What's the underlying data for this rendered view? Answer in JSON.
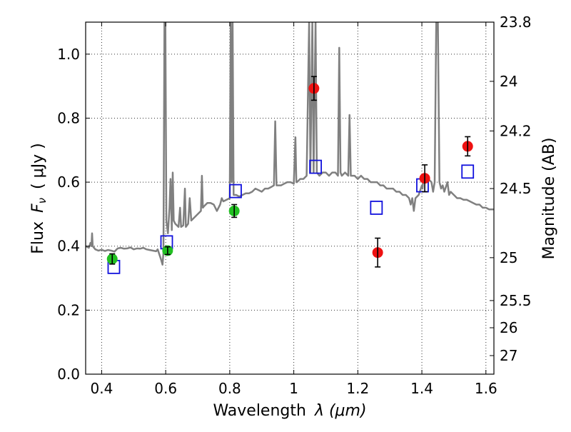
{
  "chart_data": {
    "type": "scatter",
    "xlabel_text": "Wavelength",
    "xlabel_math": "λ (μm)",
    "ylabel_text": "Flux",
    "ylabel_math": "F",
    "ylabel_sub": "ν",
    "ylabel_unit": "( μJy )",
    "y2label": "Magnitude (AB)",
    "xlim": [
      0.35,
      1.625
    ],
    "ylim": [
      0.0,
      1.1
    ],
    "xticks": [
      {
        "value": 0.4,
        "label": "0.4"
      },
      {
        "value": 0.6,
        "label": "0.6"
      },
      {
        "value": 0.8,
        "label": "0.8"
      },
      {
        "value": 1.0,
        "label": "1"
      },
      {
        "value": 1.2,
        "label": "1.2"
      },
      {
        "value": 1.4,
        "label": "1.4"
      },
      {
        "value": 1.6,
        "label": "1.6"
      }
    ],
    "yticks": [
      {
        "value": 0.0,
        "label": "0.0"
      },
      {
        "value": 0.2,
        "label": "0.2"
      },
      {
        "value": 0.4,
        "label": "0.4"
      },
      {
        "value": 0.6,
        "label": "0.6"
      },
      {
        "value": 0.8,
        "label": "0.8"
      },
      {
        "value": 1.0,
        "label": "1.0"
      }
    ],
    "y2ticks": [
      {
        "flux": 1.1,
        "label": "23.8"
      },
      {
        "flux": 0.915,
        "label": "24"
      },
      {
        "flux": 0.76,
        "label": "24.2"
      },
      {
        "flux": 0.58,
        "label": "24.5"
      },
      {
        "flux": 0.364,
        "label": "25"
      },
      {
        "flux": 0.23,
        "label": "25.5"
      },
      {
        "flux": 0.145,
        "label": "26"
      },
      {
        "flux": 0.058,
        "label": "27"
      }
    ],
    "grid": true,
    "series": [
      {
        "kind": "spectrum",
        "color": "#808080",
        "points": [
          [
            0.35,
            0.4
          ],
          [
            0.36,
            0.395
          ],
          [
            0.365,
            0.41
          ],
          [
            0.368,
            0.4
          ],
          [
            0.37,
            0.44
          ],
          [
            0.372,
            0.4
          ],
          [
            0.38,
            0.39
          ],
          [
            0.39,
            0.386
          ],
          [
            0.4,
            0.389
          ],
          [
            0.41,
            0.385
          ],
          [
            0.42,
            0.388
          ],
          [
            0.43,
            0.386
          ],
          [
            0.44,
            0.383
          ],
          [
            0.45,
            0.393
          ],
          [
            0.46,
            0.395
          ],
          [
            0.47,
            0.392
          ],
          [
            0.48,
            0.393
          ],
          [
            0.49,
            0.396
          ],
          [
            0.5,
            0.39
          ],
          [
            0.51,
            0.393
          ],
          [
            0.52,
            0.392
          ],
          [
            0.53,
            0.395
          ],
          [
            0.54,
            0.39
          ],
          [
            0.55,
            0.388
          ],
          [
            0.56,
            0.386
          ],
          [
            0.57,
            0.384
          ],
          [
            0.575,
            0.39
          ],
          [
            0.585,
            0.36
          ],
          [
            0.59,
            0.342
          ],
          [
            0.593,
            0.38
          ],
          [
            0.596,
            1.1
          ],
          [
            0.599,
            1.1
          ],
          [
            0.602,
            0.48
          ],
          [
            0.607,
            0.44
          ],
          [
            0.612,
            0.52
          ],
          [
            0.615,
            0.61
          ],
          [
            0.619,
            0.45
          ],
          [
            0.622,
            0.63
          ],
          [
            0.625,
            0.48
          ],
          [
            0.63,
            0.47
          ],
          [
            0.64,
            0.46
          ],
          [
            0.645,
            0.52
          ],
          [
            0.648,
            0.46
          ],
          [
            0.655,
            0.465
          ],
          [
            0.66,
            0.58
          ],
          [
            0.663,
            0.46
          ],
          [
            0.67,
            0.47
          ],
          [
            0.675,
            0.55
          ],
          [
            0.68,
            0.48
          ],
          [
            0.69,
            0.49
          ],
          [
            0.7,
            0.5
          ],
          [
            0.71,
            0.51
          ],
          [
            0.713,
            0.62
          ],
          [
            0.716,
            0.52
          ],
          [
            0.72,
            0.525
          ],
          [
            0.73,
            0.535
          ],
          [
            0.74,
            0.535
          ],
          [
            0.75,
            0.53
          ],
          [
            0.76,
            0.51
          ],
          [
            0.77,
            0.53
          ],
          [
            0.775,
            0.55
          ],
          [
            0.78,
            0.54
          ],
          [
            0.79,
            0.545
          ],
          [
            0.8,
            0.55
          ],
          [
            0.803,
            1.1
          ],
          [
            0.806,
            0.6
          ],
          [
            0.809,
            1.1
          ],
          [
            0.812,
            0.56
          ],
          [
            0.82,
            0.56
          ],
          [
            0.83,
            0.555
          ],
          [
            0.84,
            0.56
          ],
          [
            0.85,
            0.565
          ],
          [
            0.86,
            0.565
          ],
          [
            0.87,
            0.57
          ],
          [
            0.88,
            0.58
          ],
          [
            0.89,
            0.575
          ],
          [
            0.9,
            0.57
          ],
          [
            0.91,
            0.58
          ],
          [
            0.92,
            0.58
          ],
          [
            0.93,
            0.585
          ],
          [
            0.938,
            0.59
          ],
          [
            0.942,
            0.79
          ],
          [
            0.946,
            0.59
          ],
          [
            0.95,
            0.59
          ],
          [
            0.96,
            0.59
          ],
          [
            0.97,
            0.595
          ],
          [
            0.98,
            0.6
          ],
          [
            0.99,
            0.6
          ],
          [
            1.0,
            0.595
          ],
          [
            1.005,
            0.74
          ],
          [
            1.008,
            0.6
          ],
          [
            1.01,
            0.6
          ],
          [
            1.02,
            0.61
          ],
          [
            1.03,
            0.61
          ],
          [
            1.04,
            0.62
          ],
          [
            1.048,
            1.1
          ],
          [
            1.052,
            0.63
          ],
          [
            1.058,
            1.1
          ],
          [
            1.062,
            0.63
          ],
          [
            1.068,
            1.1
          ],
          [
            1.072,
            0.63
          ],
          [
            1.08,
            0.62
          ],
          [
            1.09,
            0.63
          ],
          [
            1.1,
            0.63
          ],
          [
            1.11,
            0.62
          ],
          [
            1.12,
            0.63
          ],
          [
            1.13,
            0.63
          ],
          [
            1.138,
            0.62
          ],
          [
            1.142,
            1.02
          ],
          [
            1.146,
            0.63
          ],
          [
            1.15,
            0.62
          ],
          [
            1.16,
            0.63
          ],
          [
            1.17,
            0.62
          ],
          [
            1.174,
            0.81
          ],
          [
            1.178,
            0.62
          ],
          [
            1.19,
            0.62
          ],
          [
            1.2,
            0.61
          ],
          [
            1.21,
            0.62
          ],
          [
            1.22,
            0.61
          ],
          [
            1.23,
            0.61
          ],
          [
            1.24,
            0.6
          ],
          [
            1.25,
            0.6
          ],
          [
            1.26,
            0.6
          ],
          [
            1.27,
            0.59
          ],
          [
            1.28,
            0.59
          ],
          [
            1.29,
            0.58
          ],
          [
            1.3,
            0.58
          ],
          [
            1.31,
            0.58
          ],
          [
            1.32,
            0.57
          ],
          [
            1.33,
            0.57
          ],
          [
            1.34,
            0.56
          ],
          [
            1.35,
            0.56
          ],
          [
            1.36,
            0.55
          ],
          [
            1.365,
            0.53
          ],
          [
            1.37,
            0.55
          ],
          [
            1.375,
            0.51
          ],
          [
            1.38,
            0.55
          ],
          [
            1.39,
            0.56
          ],
          [
            1.4,
            0.59
          ],
          [
            1.402,
            0.58
          ],
          [
            1.405,
            0.62
          ],
          [
            1.41,
            0.6
          ],
          [
            1.42,
            0.61
          ],
          [
            1.43,
            0.6
          ],
          [
            1.435,
            0.57
          ],
          [
            1.44,
            0.6
          ],
          [
            1.445,
            1.1
          ],
          [
            1.45,
            1.1
          ],
          [
            1.455,
            0.6
          ],
          [
            1.46,
            0.58
          ],
          [
            1.465,
            0.59
          ],
          [
            1.47,
            0.57
          ],
          [
            1.48,
            0.6
          ],
          [
            1.485,
            0.56
          ],
          [
            1.49,
            0.57
          ],
          [
            1.5,
            0.56
          ],
          [
            1.51,
            0.55
          ],
          [
            1.52,
            0.55
          ],
          [
            1.53,
            0.545
          ],
          [
            1.54,
            0.545
          ],
          [
            1.55,
            0.54
          ],
          [
            1.56,
            0.535
          ],
          [
            1.57,
            0.53
          ],
          [
            1.58,
            0.53
          ],
          [
            1.59,
            0.52
          ],
          [
            1.6,
            0.52
          ],
          [
            1.61,
            0.515
          ],
          [
            1.625,
            0.515
          ]
        ]
      },
      {
        "kind": "points",
        "marker": "circle",
        "color": "#22c022",
        "points": [
          {
            "x": 0.433,
            "y": 0.36,
            "err": 0.016
          },
          {
            "x": 0.606,
            "y": 0.386,
            "err": 0.012
          },
          {
            "x": 0.814,
            "y": 0.51,
            "err": 0.02
          }
        ]
      },
      {
        "kind": "points",
        "marker": "circle",
        "color": "#ee1111",
        "points": [
          {
            "x": 1.063,
            "y": 0.893,
            "err": 0.037
          },
          {
            "x": 1.262,
            "y": 0.38,
            "err": 0.045
          },
          {
            "x": 1.409,
            "y": 0.612,
            "err": 0.042
          },
          {
            "x": 1.543,
            "y": 0.712,
            "err": 0.03
          }
        ]
      },
      {
        "kind": "points",
        "marker": "square",
        "color": "#1111dd",
        "points": [
          {
            "x": 0.438,
            "y": 0.335
          },
          {
            "x": 0.603,
            "y": 0.412
          },
          {
            "x": 0.818,
            "y": 0.572
          },
          {
            "x": 1.068,
            "y": 0.648
          },
          {
            "x": 1.258,
            "y": 0.52
          },
          {
            "x": 1.402,
            "y": 0.59
          },
          {
            "x": 1.543,
            "y": 0.633
          }
        ]
      }
    ]
  }
}
